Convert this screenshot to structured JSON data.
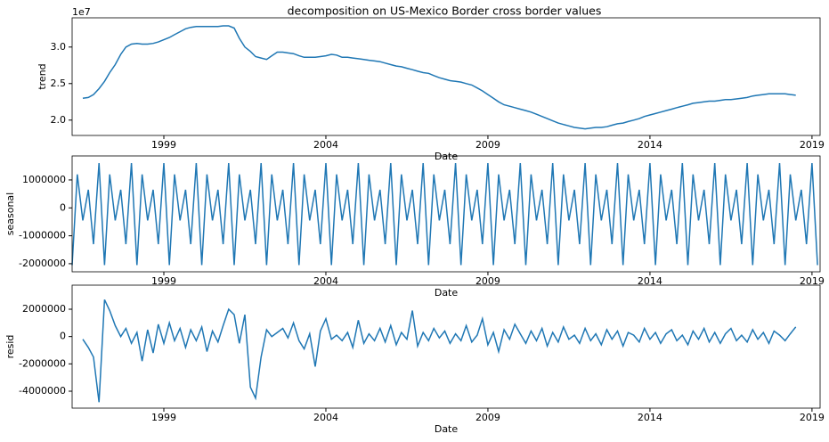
{
  "chart_data": {
    "type": "line",
    "title": "decomposition on US-Mexico Border cross border values",
    "xlabel": "Date",
    "x": [
      1996.17,
      1996.33,
      1996.5,
      1996.67,
      1996.83,
      1997.0,
      1997.17,
      1997.33,
      1997.5,
      1997.67,
      1997.83,
      1998.0,
      1998.17,
      1998.33,
      1998.5,
      1998.67,
      1998.83,
      1999.0,
      1999.17,
      1999.33,
      1999.5,
      1999.67,
      1999.83,
      2000.0,
      2000.17,
      2000.33,
      2000.5,
      2000.67,
      2000.83,
      2001.0,
      2001.17,
      2001.33,
      2001.5,
      2001.67,
      2001.83,
      2002.0,
      2002.17,
      2002.33,
      2002.5,
      2002.67,
      2002.83,
      2003.0,
      2003.17,
      2003.33,
      2003.5,
      2003.67,
      2003.83,
      2004.0,
      2004.17,
      2004.33,
      2004.5,
      2004.67,
      2004.83,
      2005.0,
      2005.17,
      2005.33,
      2005.5,
      2005.67,
      2005.83,
      2006.0,
      2006.17,
      2006.33,
      2006.5,
      2006.67,
      2006.83,
      2007.0,
      2007.17,
      2007.33,
      2007.5,
      2007.67,
      2007.83,
      2008.0,
      2008.17,
      2008.33,
      2008.5,
      2008.67,
      2008.83,
      2009.0,
      2009.17,
      2009.33,
      2009.5,
      2009.67,
      2009.83,
      2010.0,
      2010.17,
      2010.33,
      2010.5,
      2010.67,
      2010.83,
      2011.0,
      2011.17,
      2011.33,
      2011.5,
      2011.67,
      2011.83,
      2012.0,
      2012.17,
      2012.33,
      2012.5,
      2012.67,
      2012.83,
      2013.0,
      2013.17,
      2013.33,
      2013.5,
      2013.67,
      2013.83,
      2014.0,
      2014.17,
      2014.33,
      2014.5,
      2014.67,
      2014.83,
      2015.0,
      2015.17,
      2015.33,
      2015.5,
      2015.67,
      2015.83,
      2016.0,
      2016.17,
      2016.33,
      2016.5,
      2016.67,
      2016.83,
      2017.0,
      2017.17,
      2017.33,
      2017.5,
      2017.67,
      2017.83,
      2018.0,
      2018.17,
      2018.33,
      2018.5,
      2018.67,
      2018.83,
      2019.0,
      2019.17
    ],
    "xlim": [
      1996.17,
      2019.25
    ],
    "xticks": [
      1999,
      2004,
      2009,
      2014,
      2019
    ],
    "panels": [
      {
        "ylabel": "trend",
        "offset_label": "1e7",
        "color": "#1f77b4",
        "ylim": [
          17900000,
          34000000
        ],
        "yticks": [
          {
            "value": 20000000,
            "label": "2.0"
          },
          {
            "value": 25000000,
            "label": "2.5"
          },
          {
            "value": 30000000,
            "label": "3.0"
          }
        ],
        "values": [
          null,
          null,
          23000000,
          23100000,
          23500000,
          24300000,
          25300000,
          26500000,
          27600000,
          29000000,
          30000000,
          30400000,
          30500000,
          30400000,
          30400000,
          30500000,
          30700000,
          31000000,
          31300000,
          31700000,
          32100000,
          32500000,
          32700000,
          32800000,
          32800000,
          32800000,
          32800000,
          32800000,
          32900000,
          32900000,
          32600000,
          31200000,
          30000000,
          29400000,
          28700000,
          28500000,
          28300000,
          28800000,
          29300000,
          29300000,
          29200000,
          29100000,
          28800000,
          28600000,
          28600000,
          28600000,
          28700000,
          28800000,
          29000000,
          28900000,
          28600000,
          28600000,
          28500000,
          28400000,
          28300000,
          28200000,
          28100000,
          28000000,
          27800000,
          27600000,
          27400000,
          27300000,
          27100000,
          26900000,
          26700000,
          26500000,
          26400000,
          26100000,
          25800000,
          25600000,
          25400000,
          25300000,
          25200000,
          25000000,
          24800000,
          24400000,
          24000000,
          23500000,
          23000000,
          22500000,
          22100000,
          21900000,
          21700000,
          21500000,
          21300000,
          21100000,
          20800000,
          20500000,
          20200000,
          19900000,
          19600000,
          19400000,
          19200000,
          19000000,
          18900000,
          18800000,
          18900000,
          19000000,
          19000000,
          19100000,
          19300000,
          19500000,
          19600000,
          19800000,
          20000000,
          20200000,
          20500000,
          20700000,
          20900000,
          21100000,
          21300000,
          21500000,
          21700000,
          21900000,
          22100000,
          22300000,
          22400000,
          22500000,
          22600000,
          22600000,
          22700000,
          22800000,
          22800000,
          22900000,
          23000000,
          23100000,
          23300000,
          23400000,
          23500000,
          23600000,
          23600000,
          23600000,
          23600000,
          23500000,
          23400000,
          null,
          null,
          null,
          null
        ]
      },
      {
        "ylabel": "seasonal",
        "color": "#1f77b4",
        "ylim": [
          -2290000,
          1860000
        ],
        "yticks": [
          -2000000,
          -1000000,
          0,
          1000000
        ],
        "values": [
          -2050000,
          1200000,
          -450000,
          650000,
          -1300000,
          1600000,
          -2050000,
          1200000,
          -450000,
          650000,
          -1300000,
          1600000,
          -2050000,
          1200000,
          -450000,
          650000,
          -1300000,
          1600000,
          -2050000,
          1200000,
          -450000,
          650000,
          -1300000,
          1600000,
          -2050000,
          1200000,
          -450000,
          650000,
          -1300000,
          1600000,
          -2050000,
          1200000,
          -450000,
          650000,
          -1300000,
          1600000,
          -2050000,
          1200000,
          -450000,
          650000,
          -1300000,
          1600000,
          -2050000,
          1200000,
          -450000,
          650000,
          -1300000,
          1600000,
          -2050000,
          1200000,
          -450000,
          650000,
          -1300000,
          1600000,
          -2050000,
          1200000,
          -450000,
          650000,
          -1300000,
          1600000,
          -2050000,
          1200000,
          -450000,
          650000,
          -1300000,
          1600000,
          -2050000,
          1200000,
          -450000,
          650000,
          -1300000,
          1600000,
          -2050000,
          1200000,
          -450000,
          650000,
          -1300000,
          1600000,
          -2050000,
          1200000,
          -450000,
          650000,
          -1300000,
          1600000,
          -2050000,
          1200000,
          -450000,
          650000,
          -1300000,
          1600000,
          -2050000,
          1200000,
          -450000,
          650000,
          -1300000,
          1600000,
          -2050000,
          1200000,
          -450000,
          650000,
          -1300000,
          1600000,
          -2050000,
          1200000,
          -450000,
          650000,
          -1300000,
          1600000,
          -2050000,
          1200000,
          -450000,
          650000,
          -1300000,
          1600000,
          -2050000,
          1200000,
          -450000,
          650000,
          -1300000,
          1600000,
          -2050000,
          1200000,
          -450000,
          650000,
          -1300000,
          1600000,
          -2050000,
          1200000,
          -450000,
          650000,
          -1300000,
          1600000,
          -2050000,
          1200000,
          -450000,
          650000,
          -1300000,
          1600000,
          -2050000
        ]
      },
      {
        "ylabel": "resid",
        "color": "#1f77b4",
        "ylim": [
          -5240000,
          3760000
        ],
        "yticks": [
          -4000000,
          -2000000,
          0,
          2000000
        ],
        "values": [
          null,
          null,
          -200000,
          -800000,
          -1500000,
          -4800000,
          2700000,
          1900000,
          800000,
          0,
          600000,
          -500000,
          300000,
          -1800000,
          500000,
          -1200000,
          900000,
          -500000,
          1000000,
          -300000,
          600000,
          -800000,
          500000,
          -300000,
          700000,
          -1100000,
          400000,
          -400000,
          800000,
          2000000,
          1600000,
          -500000,
          1600000,
          -3700000,
          -4500000,
          -1500000,
          500000,
          0,
          300000,
          600000,
          -100000,
          1000000,
          -300000,
          -900000,
          200000,
          -2200000,
          400000,
          1300000,
          -200000,
          100000,
          -300000,
          300000,
          -800000,
          1200000,
          -500000,
          200000,
          -300000,
          600000,
          -400000,
          800000,
          -600000,
          300000,
          -200000,
          1900000,
          -700000,
          300000,
          -300000,
          600000,
          -100000,
          400000,
          -500000,
          200000,
          -300000,
          800000,
          -400000,
          100000,
          1300000,
          -600000,
          300000,
          -1100000,
          500000,
          -200000,
          900000,
          200000,
          -500000,
          400000,
          -300000,
          600000,
          -700000,
          300000,
          -400000,
          700000,
          -200000,
          100000,
          -500000,
          600000,
          -300000,
          200000,
          -600000,
          500000,
          -200000,
          400000,
          -700000,
          300000,
          100000,
          -400000,
          600000,
          -200000,
          300000,
          -500000,
          200000,
          500000,
          -300000,
          100000,
          -600000,
          400000,
          -200000,
          600000,
          -400000,
          300000,
          -500000,
          200000,
          600000,
          -300000,
          100000,
          -400000,
          500000,
          -200000,
          300000,
          -500000,
          400000,
          100000,
          -300000,
          200000,
          700000,
          null,
          null,
          null,
          null
        ]
      }
    ]
  }
}
